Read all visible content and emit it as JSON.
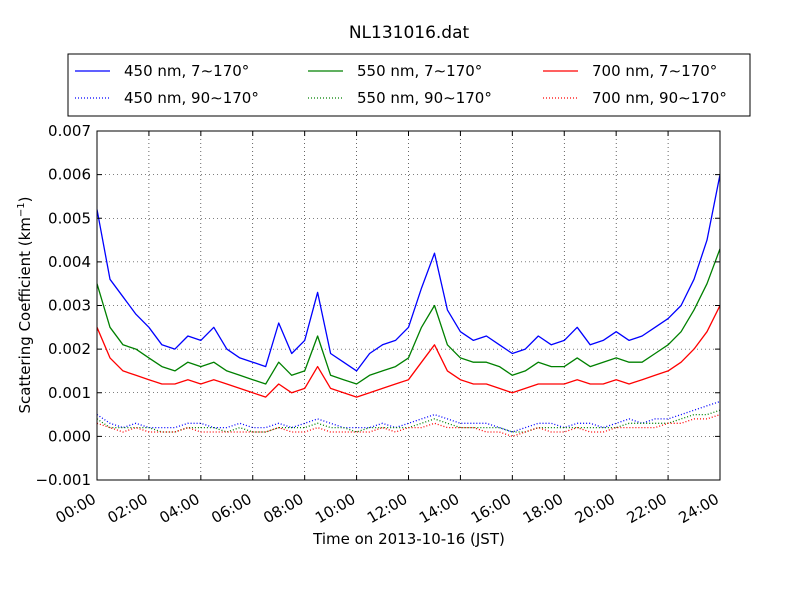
{
  "chart_data": {
    "type": "line",
    "title": "NL131016.dat",
    "xlabel": "Time on 2013-10-16 (JST)",
    "ylabel": "Scattering Coefficient (km",
    "ylabel_exponent": "−1",
    "ylabel_close": ")",
    "xlim": [
      "00:00",
      "24:00"
    ],
    "ylim": [
      -0.001,
      0.007
    ],
    "grid": true,
    "legend_position": "top",
    "x_ticks": [
      "00:00",
      "02:00",
      "04:00",
      "06:00",
      "08:00",
      "10:00",
      "12:00",
      "14:00",
      "16:00",
      "18:00",
      "20:00",
      "22:00",
      "24:00"
    ],
    "y_ticks": [
      "−0.001",
      "0.000",
      "0.001",
      "0.002",
      "0.003",
      "0.004",
      "0.005",
      "0.006",
      "0.007"
    ],
    "x": [
      0,
      0.5,
      1,
      1.5,
      2,
      2.5,
      3,
      3.5,
      4,
      4.5,
      5,
      5.5,
      6,
      6.5,
      7,
      7.5,
      8,
      8.5,
      9,
      9.5,
      10,
      10.5,
      11,
      11.5,
      12,
      12.5,
      13,
      13.5,
      14,
      14.5,
      15,
      15.5,
      16,
      16.5,
      17,
      17.5,
      18,
      18.5,
      19,
      19.5,
      20,
      20.5,
      21,
      21.5,
      22,
      22.5,
      23,
      23.5,
      24
    ],
    "series": [
      {
        "name": "450 nm, 7∼170°",
        "color": "#0000ff",
        "linestyle": "solid",
        "values": [
          0.0052,
          0.0036,
          0.0032,
          0.0028,
          0.0025,
          0.0021,
          0.002,
          0.0023,
          0.0022,
          0.0025,
          0.002,
          0.0018,
          0.0017,
          0.0016,
          0.0026,
          0.0019,
          0.0022,
          0.0033,
          0.0019,
          0.0017,
          0.0015,
          0.0019,
          0.0021,
          0.0022,
          0.0025,
          0.0034,
          0.0042,
          0.0029,
          0.0024,
          0.0022,
          0.0023,
          0.0021,
          0.0019,
          0.002,
          0.0023,
          0.0021,
          0.0022,
          0.0025,
          0.0021,
          0.0022,
          0.0024,
          0.0022,
          0.0023,
          0.0025,
          0.0027,
          0.003,
          0.0036,
          0.0045,
          0.006
        ]
      },
      {
        "name": "550 nm, 7∼170°",
        "color": "#008000",
        "linestyle": "solid",
        "values": [
          0.0035,
          0.0025,
          0.0021,
          0.002,
          0.0018,
          0.0016,
          0.0015,
          0.0017,
          0.0016,
          0.0017,
          0.0015,
          0.0014,
          0.0013,
          0.0012,
          0.0017,
          0.0014,
          0.0015,
          0.0023,
          0.0014,
          0.0013,
          0.0012,
          0.0014,
          0.0015,
          0.0016,
          0.0018,
          0.0025,
          0.003,
          0.0021,
          0.0018,
          0.0017,
          0.0017,
          0.0016,
          0.0014,
          0.0015,
          0.0017,
          0.0016,
          0.0016,
          0.0018,
          0.0016,
          0.0017,
          0.0018,
          0.0017,
          0.0017,
          0.0019,
          0.0021,
          0.0024,
          0.0029,
          0.0035,
          0.0043
        ]
      },
      {
        "name": "700 nm, 7∼170°",
        "color": "#ff0000",
        "linestyle": "solid",
        "values": [
          0.0025,
          0.0018,
          0.0015,
          0.0014,
          0.0013,
          0.0012,
          0.0012,
          0.0013,
          0.0012,
          0.0013,
          0.0012,
          0.0011,
          0.001,
          0.0009,
          0.0012,
          0.001,
          0.0011,
          0.0016,
          0.0011,
          0.001,
          0.0009,
          0.001,
          0.0011,
          0.0012,
          0.0013,
          0.0017,
          0.0021,
          0.0015,
          0.0013,
          0.0012,
          0.0012,
          0.0011,
          0.001,
          0.0011,
          0.0012,
          0.0012,
          0.0012,
          0.0013,
          0.0012,
          0.0012,
          0.0013,
          0.0012,
          0.0013,
          0.0014,
          0.0015,
          0.0017,
          0.002,
          0.0024,
          0.003
        ]
      },
      {
        "name": "450 nm, 90∼170°",
        "color": "#0000ff",
        "linestyle": "dotted",
        "values": [
          0.0005,
          0.0003,
          0.0002,
          0.0003,
          0.0002,
          0.0002,
          0.0002,
          0.0003,
          0.0003,
          0.0002,
          0.0002,
          0.0003,
          0.0002,
          0.0002,
          0.0003,
          0.0002,
          0.0003,
          0.0004,
          0.0003,
          0.0002,
          0.0002,
          0.0002,
          0.0003,
          0.0002,
          0.0003,
          0.0004,
          0.0005,
          0.0004,
          0.0003,
          0.0003,
          0.0003,
          0.0002,
          0.0001,
          0.0002,
          0.0003,
          0.0003,
          0.0002,
          0.0003,
          0.0003,
          0.0002,
          0.0003,
          0.0004,
          0.0003,
          0.0004,
          0.0004,
          0.0005,
          0.0006,
          0.0007,
          0.0008
        ]
      },
      {
        "name": "550 nm, 90∼170°",
        "color": "#008000",
        "linestyle": "dotted",
        "values": [
          0.0004,
          0.0002,
          0.0002,
          0.0002,
          0.0002,
          0.0001,
          0.0001,
          0.0002,
          0.0002,
          0.0002,
          0.0001,
          0.0002,
          0.0001,
          0.0001,
          0.0002,
          0.0002,
          0.0002,
          0.0003,
          0.0002,
          0.0002,
          0.0001,
          0.0002,
          0.0002,
          0.0002,
          0.0002,
          0.0003,
          0.0004,
          0.0003,
          0.0002,
          0.0002,
          0.0002,
          0.0002,
          0.0001,
          0.0001,
          0.0002,
          0.0002,
          0.0002,
          0.0002,
          0.0002,
          0.0002,
          0.0002,
          0.0003,
          0.0003,
          0.0003,
          0.0003,
          0.0004,
          0.0005,
          0.0005,
          0.0006
        ]
      },
      {
        "name": "700 nm, 90∼170°",
        "color": "#ff0000",
        "linestyle": "dotted",
        "values": [
          0.0003,
          0.0002,
          0.0001,
          0.0002,
          0.0001,
          0.0001,
          0.0001,
          0.0002,
          0.0001,
          0.0001,
          0.0001,
          0.0001,
          0.0001,
          0.0001,
          0.0002,
          0.0001,
          0.0001,
          0.0002,
          0.0001,
          0.0001,
          0.0001,
          0.0001,
          0.0002,
          0.0001,
          0.0002,
          0.0002,
          0.0003,
          0.0002,
          0.0002,
          0.0002,
          0.0001,
          0.0001,
          0.0,
          0.0001,
          0.0002,
          0.0001,
          0.0001,
          0.0002,
          0.0001,
          0.0001,
          0.0002,
          0.0002,
          0.0002,
          0.0002,
          0.0003,
          0.0003,
          0.0004,
          0.0004,
          0.0005
        ]
      }
    ]
  }
}
